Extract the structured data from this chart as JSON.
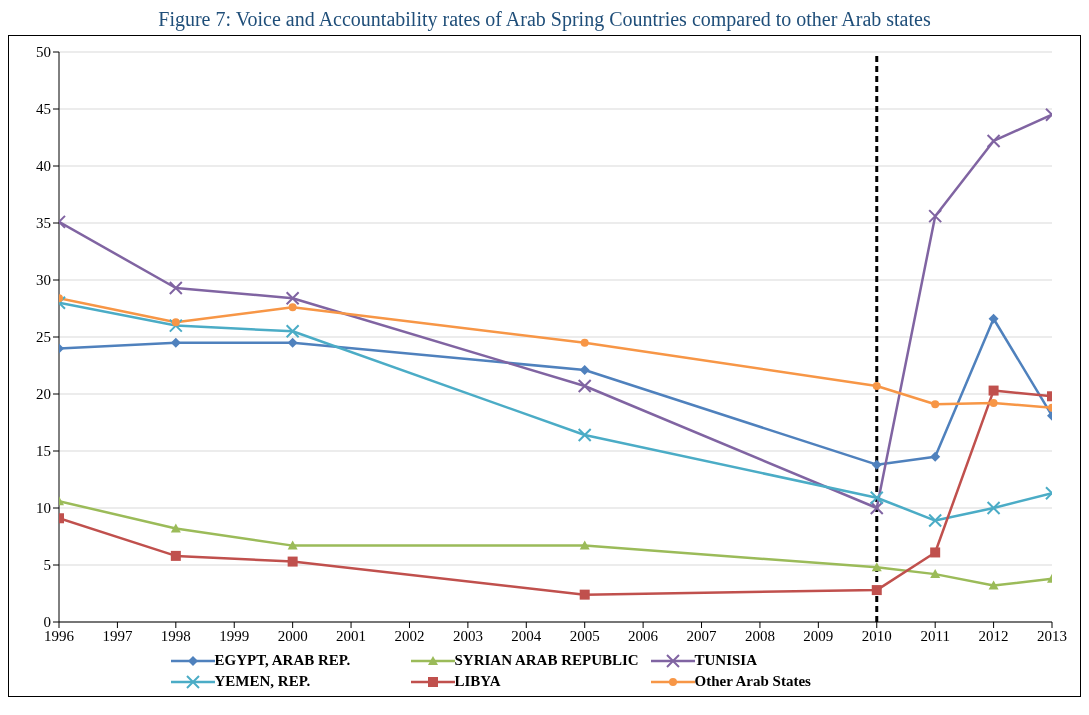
{
  "chart_data": {
    "type": "line",
    "title": "Figure 7: Voice and Accountability rates of Arab Spring Countries compared to other Arab states",
    "x": [
      1996,
      1998,
      2000,
      2005,
      2010,
      2011,
      2012,
      2013
    ],
    "xlim": [
      1996,
      2013
    ],
    "xticks": [
      1996,
      1997,
      1998,
      1999,
      2000,
      2001,
      2002,
      2003,
      2004,
      2005,
      2006,
      2007,
      2008,
      2009,
      2010,
      2011,
      2012,
      2013
    ],
    "ylim": [
      0,
      50
    ],
    "yticks": [
      0,
      5,
      10,
      15,
      20,
      25,
      30,
      35,
      40,
      45,
      50
    ],
    "grid": "y",
    "legend": "bottom",
    "line_style": "solid",
    "ref_lines": [
      {
        "axis": "x",
        "value": 2010,
        "color": "#000000",
        "line_style": "dashed"
      }
    ],
    "series": [
      {
        "name": "EGYPT, ARAB REP.",
        "color": "#4f81bd",
        "marker": "diamond",
        "values": [
          24.0,
          24.5,
          24.5,
          22.1,
          13.8,
          14.5,
          26.6,
          18.1
        ]
      },
      {
        "name": "SYRIAN ARAB REPUBLIC",
        "color": "#9bbb59",
        "marker": "triangle",
        "values": [
          10.6,
          8.2,
          6.7,
          6.7,
          4.8,
          4.2,
          3.2,
          3.8
        ]
      },
      {
        "name": "TUNISIA",
        "color": "#8064a2",
        "marker": "cross",
        "values": [
          35.1,
          29.3,
          28.4,
          20.7,
          10.0,
          35.6,
          42.2,
          44.5
        ]
      },
      {
        "name": "YEMEN, REP.",
        "color": "#4bacc6",
        "marker": "cross",
        "values": [
          28.0,
          26.0,
          25.5,
          16.4,
          10.9,
          8.9,
          10.0,
          11.3
        ]
      },
      {
        "name": "LIBYA",
        "color": "#c0504d",
        "marker": "square",
        "values": [
          9.1,
          5.8,
          5.3,
          2.4,
          2.8,
          6.1,
          20.3,
          19.8
        ]
      },
      {
        "name": "Other Arab States",
        "color": "#f79646",
        "marker": "circle",
        "values": [
          28.4,
          26.3,
          27.6,
          24.5,
          20.7,
          19.1,
          19.2,
          18.8
        ]
      }
    ]
  }
}
